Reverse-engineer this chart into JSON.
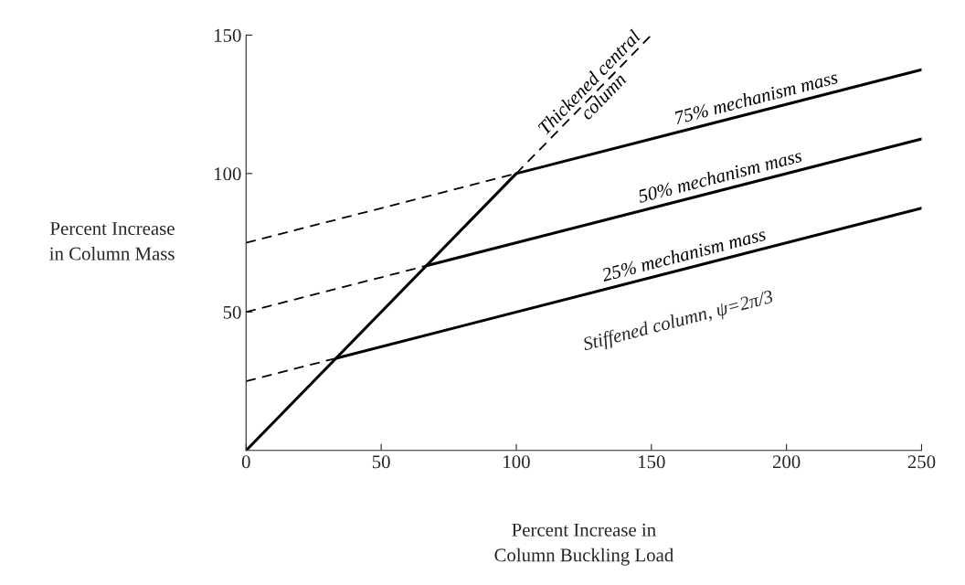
{
  "chart_data": {
    "type": "line",
    "xlabel": "Percent Increase in\nColumn Buckling Load",
    "ylabel": "Percent Increase\nin Column Mass",
    "xlim": [
      0,
      250
    ],
    "ylim": [
      0,
      150
    ],
    "xticks": [
      0,
      50,
      100,
      150,
      200,
      250
    ],
    "yticks": [
      50,
      100,
      150
    ],
    "series": [
      {
        "color": "#000000",
        "line_style": "solid",
        "x": [
          0,
          100
        ],
        "values": [
          0,
          100
        ]
      },
      {
        "name": "Thickened central\ncolumn",
        "color": "#000000",
        "line_style": "dashed",
        "x": [
          100,
          150
        ],
        "values": [
          100,
          150
        ]
      },
      {
        "color": "#000000",
        "line_style": "dashed",
        "x": [
          0,
          100
        ],
        "values": [
          75,
          100
        ]
      },
      {
        "name": "75% mechanism mass",
        "color": "#000000",
        "line_style": "solid",
        "x": [
          100,
          250
        ],
        "values": [
          100,
          137.5
        ]
      },
      {
        "color": "#000000",
        "line_style": "dashed",
        "x": [
          0,
          66.7
        ],
        "values": [
          50,
          66.7
        ]
      },
      {
        "name": "50% mechanism mass",
        "color": "#000000",
        "line_style": "solid",
        "x": [
          66.7,
          250
        ],
        "values": [
          66.7,
          112.5
        ]
      },
      {
        "color": "#000000",
        "line_style": "dashed",
        "x": [
          0,
          33.3
        ],
        "values": [
          25,
          33.3
        ]
      },
      {
        "name": "25% mechanism mass",
        "color": "#000000",
        "line_style": "solid",
        "x": [
          33.3,
          250
        ],
        "values": [
          33.3,
          87.5
        ]
      }
    ],
    "annotations": [
      "Stiffened column, ψ=2π/3"
    ],
    "legend": false,
    "grid": false,
    "marker": "none"
  }
}
